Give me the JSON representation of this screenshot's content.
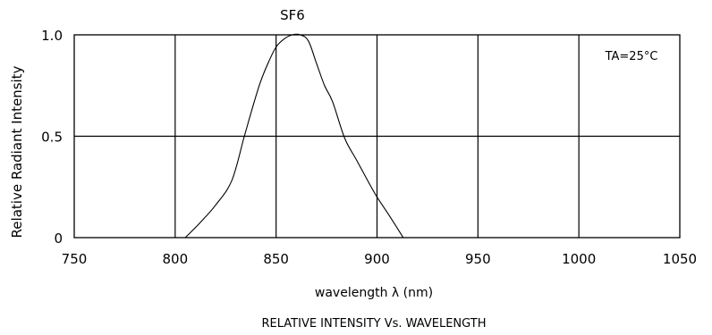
{
  "chart_data": {
    "type": "line",
    "title": "SF6",
    "subtitle": "RELATIVE INTENSITY Vs. WAVELENGTH",
    "xlabel": "wavelength λ (nm)",
    "ylabel": "Relative Radiant Intensity",
    "annotation": "TA=25°C",
    "xlim": [
      750,
      1050
    ],
    "ylim": [
      0,
      1.0
    ],
    "xticks": [
      "750",
      "800",
      "850",
      "900",
      "950",
      "1000",
      "1050"
    ],
    "yticks": [
      "0",
      "0.5",
      "1.0"
    ],
    "grid": true,
    "series": [
      {
        "x": [
          805,
          812,
          820,
          828,
          834,
          838,
          842,
          846,
          850,
          854,
          858,
          862,
          866,
          870,
          874,
          878,
          884,
          890,
          896,
          900,
          906,
          913
        ],
        "y": [
          0.0,
          0.07,
          0.16,
          0.28,
          0.49,
          0.63,
          0.76,
          0.86,
          0.94,
          0.98,
          1.0,
          1.0,
          0.97,
          0.86,
          0.75,
          0.67,
          0.49,
          0.38,
          0.27,
          0.2,
          0.11,
          0.0
        ]
      }
    ]
  }
}
